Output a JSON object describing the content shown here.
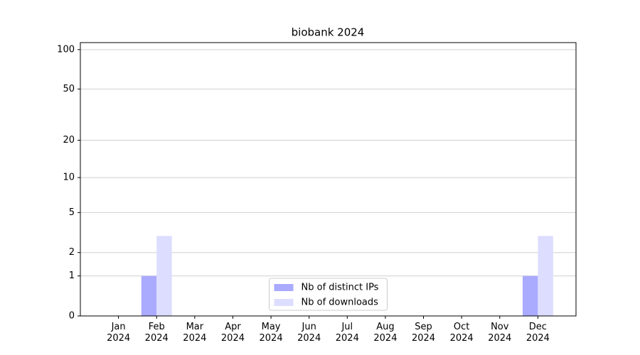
{
  "chart_data": {
    "type": "bar",
    "title": "biobank 2024",
    "categories": [
      "Jan\n2024",
      "Feb\n2024",
      "Mar\n2024",
      "Apr\n2024",
      "May\n2024",
      "Jun\n2024",
      "Jul\n2024",
      "Aug\n2024",
      "Sep\n2024",
      "Oct\n2024",
      "Nov\n2024",
      "Dec\n2024"
    ],
    "series": [
      {
        "name": "Nb of distinct IPs",
        "color": "#aaaaff",
        "values": [
          0,
          1,
          0,
          0,
          0,
          0,
          0,
          0,
          0,
          0,
          0,
          1
        ]
      },
      {
        "name": "Nb of downloads",
        "color": "#ddddff",
        "values": [
          0,
          3,
          0,
          0,
          0,
          0,
          0,
          0,
          0,
          0,
          0,
          3
        ]
      }
    ],
    "yscale": "log1p",
    "ylim": [
      0,
      113
    ],
    "yticks": [
      0,
      1,
      2,
      5,
      10,
      20,
      50,
      100
    ],
    "grid": true,
    "legend": "lower center"
  }
}
